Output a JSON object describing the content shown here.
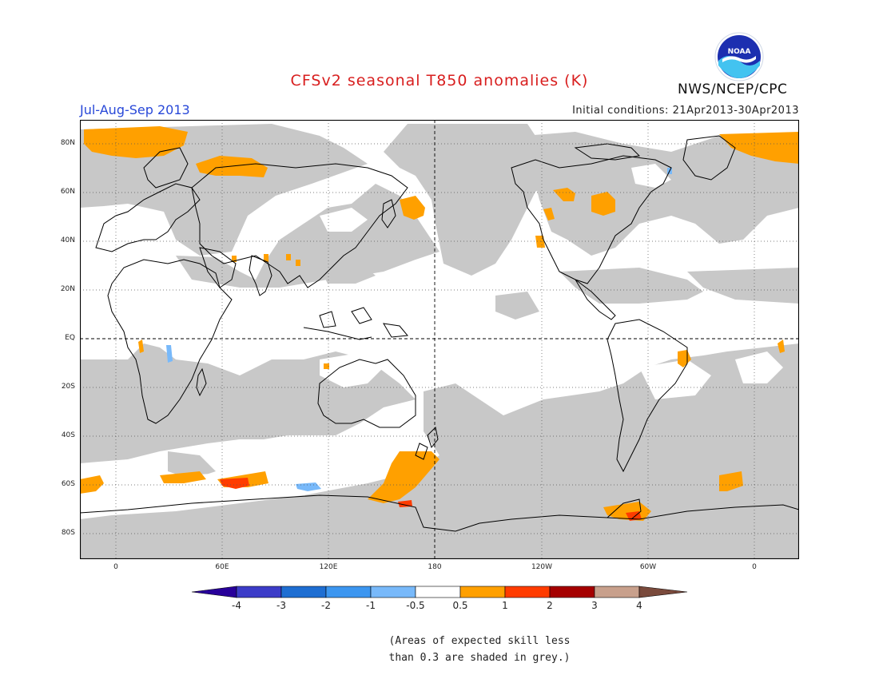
{
  "header": {
    "title": "CFSv2 seasonal T850 anomalies (K)",
    "season": "Jul-Aug-Sep 2013",
    "initial_conditions": "Initial conditions: 21Apr2013-30Apr2013",
    "agency": "NWS/NCEP/CPC",
    "logo_text": "NOAA"
  },
  "map": {
    "lat_ticks": [
      "80N",
      "60N",
      "40N",
      "20N",
      "EQ",
      "20S",
      "40S",
      "60S",
      "80S"
    ],
    "lon_ticks": [
      "0",
      "60E",
      "120E",
      "180",
      "120W",
      "60W",
      "0"
    ]
  },
  "legend": {
    "colors": [
      "#28009a",
      "#3c3cc8",
      "#1e6ed2",
      "#3c96f0",
      "#78b9fa",
      "#ffffff",
      "#ffa000",
      "#ff3c00",
      "#a50000",
      "#c8a08c",
      "#7a4a3c"
    ],
    "labels": [
      "-4",
      "-3",
      "-2",
      "-1",
      "-0.5",
      "0.5",
      "1",
      "2",
      "3",
      "4"
    ]
  },
  "note": {
    "line1": "(Areas of expected skill less",
    "line2": "than 0.3 are shaded in grey.)"
  },
  "colors": {
    "skill_grey": "#c8c8c8",
    "warm": "#ffa000",
    "hot": "#ff3c00",
    "cool": "#78b9fa"
  }
}
